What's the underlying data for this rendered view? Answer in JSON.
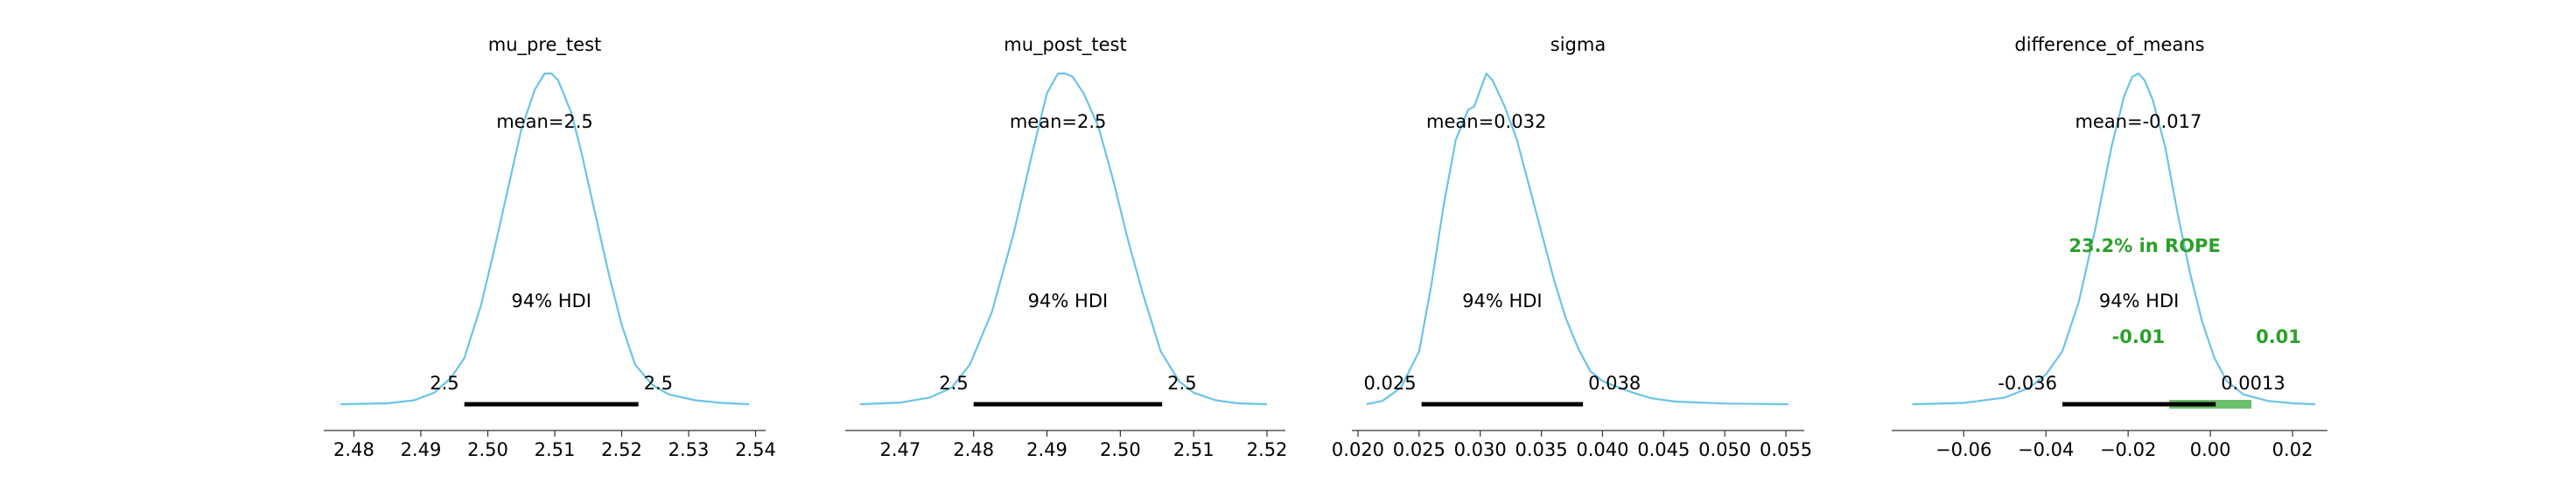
{
  "figure": {
    "background": "#ffffff",
    "curve_color": "#6bc4e8",
    "hdi_color": "#000000",
    "rope_color": "#5cb85c",
    "rope_text_color": "#2ca02c",
    "axis_color": "#333333"
  },
  "chart_data": [
    {
      "type": "area",
      "title": "mu_pre_test",
      "mean_label": "mean=2.5",
      "hdi_label": "94% HDI",
      "hdi": [
        2.4965,
        2.5225
      ],
      "hdi_lower_label": "2.5",
      "hdi_upper_label": "2.5",
      "xlim": [
        2.4755,
        2.5415
      ],
      "xticks": [
        2.48,
        2.49,
        2.5,
        2.51,
        2.52,
        2.53,
        2.54
      ],
      "xtick_labels": [
        "2.48",
        "2.49",
        "2.50",
        "2.51",
        "2.52",
        "2.53",
        "2.54"
      ],
      "density": {
        "x": [
          2.478,
          2.485,
          2.489,
          2.492,
          2.4945,
          2.4965,
          2.499,
          2.501,
          2.503,
          2.505,
          2.507,
          2.5085,
          2.5095,
          2.5105,
          2.5125,
          2.514,
          2.516,
          2.518,
          2.52,
          2.522,
          2.5245,
          2.527,
          2.531,
          2.535,
          2.539
        ],
        "y": [
          0.0,
          0.003,
          0.012,
          0.035,
          0.08,
          0.14,
          0.3,
          0.47,
          0.65,
          0.83,
          0.95,
          1.0,
          1.0,
          0.98,
          0.88,
          0.76,
          0.58,
          0.4,
          0.24,
          0.12,
          0.06,
          0.03,
          0.012,
          0.004,
          0.0
        ]
      }
    },
    {
      "type": "area",
      "title": "mu_post_test",
      "mean_label": "mean=2.5",
      "hdi_label": "94% HDI",
      "hdi": [
        2.48,
        2.5057
      ],
      "hdi_lower_label": "2.5",
      "hdi_upper_label": "2.5",
      "xlim": [
        2.4625,
        2.5225
      ],
      "xticks": [
        2.47,
        2.48,
        2.49,
        2.5,
        2.51,
        2.52
      ],
      "xtick_labels": [
        "2.47",
        "2.48",
        "2.49",
        "2.50",
        "2.51",
        "2.52"
      ],
      "density": {
        "x": [
          2.4645,
          2.47,
          2.474,
          2.477,
          2.4795,
          2.4825,
          2.4855,
          2.488,
          2.49,
          2.4915,
          2.4925,
          2.4935,
          2.495,
          2.497,
          2.499,
          2.501,
          2.503,
          2.5055,
          2.508,
          2.51,
          2.513,
          2.516,
          2.52
        ],
        "y": [
          0.0,
          0.005,
          0.02,
          0.05,
          0.12,
          0.28,
          0.52,
          0.76,
          0.94,
          1.0,
          1.0,
          0.99,
          0.94,
          0.84,
          0.68,
          0.5,
          0.34,
          0.16,
          0.07,
          0.035,
          0.012,
          0.003,
          0.0
        ]
      }
    },
    {
      "type": "area",
      "title": "sigma",
      "mean_label": "mean=0.032",
      "hdi_label": "94% HDI",
      "hdi": [
        0.0252,
        0.0384
      ],
      "hdi_lower_label": "0.025",
      "hdi_upper_label": "0.038",
      "xlim": [
        0.0195,
        0.0565
      ],
      "xticks": [
        0.02,
        0.025,
        0.03,
        0.035,
        0.04,
        0.045,
        0.05,
        0.055
      ],
      "xtick_labels": [
        "0.020",
        "0.025",
        "0.030",
        "0.035",
        "0.040",
        "0.045",
        "0.050",
        "0.055"
      ],
      "density": {
        "x": [
          0.0207,
          0.022,
          0.0235,
          0.025,
          0.026,
          0.027,
          0.028,
          0.029,
          0.0295,
          0.03,
          0.0305,
          0.031,
          0.032,
          0.033,
          0.034,
          0.035,
          0.036,
          0.037,
          0.038,
          0.039,
          0.04,
          0.041,
          0.0425,
          0.044,
          0.046,
          0.05,
          0.0552
        ],
        "y": [
          0.0,
          0.01,
          0.05,
          0.16,
          0.36,
          0.6,
          0.8,
          0.89,
          0.9,
          0.95,
          1.0,
          0.98,
          0.9,
          0.8,
          0.66,
          0.52,
          0.38,
          0.26,
          0.17,
          0.1,
          0.07,
          0.055,
          0.035,
          0.018,
          0.008,
          0.002,
          0.0
        ]
      }
    },
    {
      "type": "area",
      "title": "difference_of_means",
      "mean_label": "mean=-0.017",
      "hdi_label": "94% HDI",
      "hdi": [
        -0.036,
        0.0013
      ],
      "hdi_lower_label": "-0.036",
      "hdi_upper_label": "0.0013",
      "rope": [
        -0.01,
        0.01
      ],
      "rope_label": "23.2% in ROPE",
      "rope_lower_label": "-0.01",
      "rope_upper_label": "0.01",
      "xlim": [
        -0.0775,
        0.0285
      ],
      "xticks": [
        -0.06,
        -0.04,
        -0.02,
        0.0,
        0.02
      ],
      "xtick_labels": [
        "−0.06",
        "−0.04",
        "−0.02",
        "0.00",
        "0.02"
      ],
      "density": {
        "x": [
          -0.0725,
          -0.06,
          -0.05,
          -0.044,
          -0.04,
          -0.036,
          -0.032,
          -0.028,
          -0.024,
          -0.021,
          -0.019,
          -0.0175,
          -0.016,
          -0.014,
          -0.011,
          -0.008,
          -0.005,
          -0.002,
          0.001,
          0.004,
          0.008,
          0.014,
          0.02,
          0.0255
        ],
        "y": [
          0.0,
          0.004,
          0.02,
          0.05,
          0.09,
          0.16,
          0.31,
          0.53,
          0.78,
          0.93,
          0.99,
          1.0,
          0.98,
          0.92,
          0.78,
          0.58,
          0.4,
          0.25,
          0.14,
          0.07,
          0.03,
          0.01,
          0.003,
          0.0
        ]
      }
    }
  ]
}
